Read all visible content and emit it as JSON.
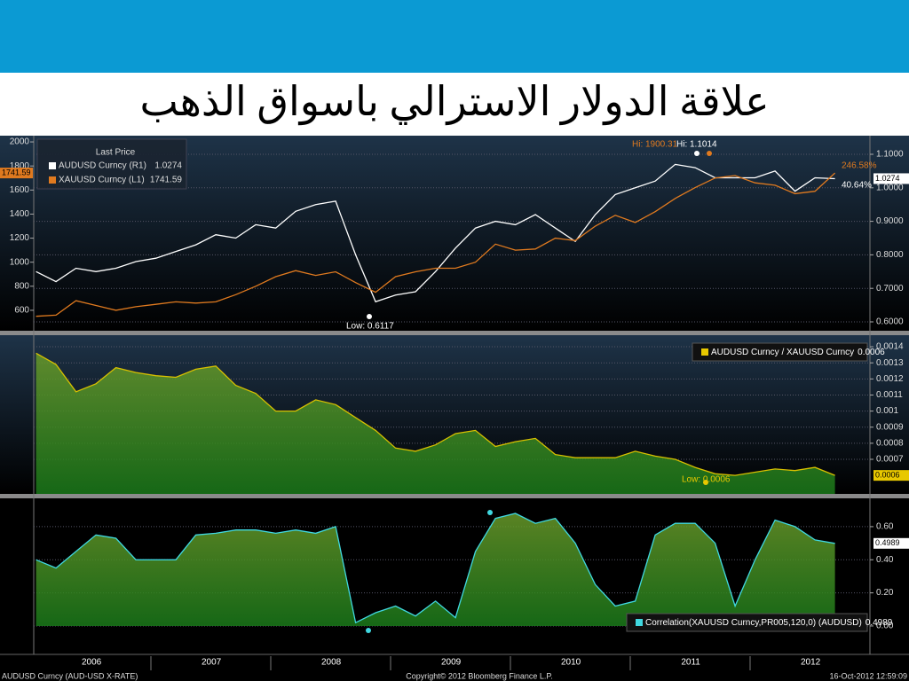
{
  "header": {
    "title": "علاقة الدولار الاسترالي باسواق الذهب"
  },
  "chart_data": [
    {
      "type": "line",
      "legend_title": "Last Price",
      "ylim": [
        430,
        2052
      ],
      "yticks": [
        600,
        800,
        1000,
        1200,
        1400,
        1600,
        1800,
        2000
      ],
      "y2lim": [
        0.5735,
        1.1556
      ],
      "y2ticks": [
        {
          "value": 0.6,
          "label": "0.6000"
        },
        {
          "value": 0.7,
          "label": "0.7000"
        },
        {
          "value": 0.8,
          "label": "0.8000"
        },
        {
          "value": 0.9,
          "label": "0.9000"
        },
        {
          "value": 1.0,
          "label": "1.0000"
        },
        {
          "value": 1.1,
          "label": "1.1000"
        }
      ],
      "grid": true,
      "series": [
        {
          "name": "AUDUSD Curncy  (R1)",
          "color": "#ffffff",
          "axis": "y2",
          "values": [
            0.75,
            0.72,
            0.76,
            0.75,
            0.76,
            0.78,
            0.79,
            0.81,
            0.83,
            0.86,
            0.85,
            0.89,
            0.88,
            0.93,
            0.95,
            0.96,
            0.8,
            0.66,
            0.68,
            0.69,
            0.75,
            0.82,
            0.88,
            0.9,
            0.89,
            0.92,
            0.88,
            0.84,
            0.92,
            0.98,
            1.0,
            1.02,
            1.07,
            1.06,
            1.03,
            1.03,
            1.03,
            1.05,
            0.99,
            1.03,
            1.0274
          ]
        },
        {
          "name": "XAUUSD Curncy  (L1)",
          "color": "#e07a1f",
          "values": [
            550,
            560,
            680,
            640,
            600,
            630,
            650,
            670,
            660,
            670,
            730,
            800,
            880,
            930,
            890,
            920,
            830,
            750,
            880,
            920,
            950,
            950,
            1000,
            1150,
            1100,
            1110,
            1200,
            1180,
            1300,
            1390,
            1330,
            1420,
            1530,
            1620,
            1700,
            1720,
            1660,
            1640,
            1570,
            1590,
            1741.59
          ]
        }
      ],
      "annotations": [
        "Hi: 1900.31",
        "Hi: 1.1014",
        "Low: 0.6117",
        "246.58%",
        "40.64%"
      ]
    },
    {
      "type": "area",
      "ylim": [
        0.000485,
        0.001472
      ],
      "yticks": [
        0.0007,
        0.0008,
        0.0009,
        0.001,
        0.0011,
        0.0012,
        0.0013,
        0.0014
      ],
      "grid": true,
      "series": [
        {
          "name": "AUDUSD Curncy / XAUUSD Curncy",
          "color": "#d8c000",
          "values": [
            0.00136,
            0.00129,
            0.00112,
            0.00117,
            0.00127,
            0.00124,
            0.00122,
            0.00121,
            0.00126,
            0.00128,
            0.00116,
            0.00111,
            0.001,
            0.001,
            0.00107,
            0.00104,
            0.00096,
            0.00088,
            0.00077,
            0.00075,
            0.00079,
            0.00086,
            0.00088,
            0.00078,
            0.00081,
            0.00083,
            0.00073,
            0.00071,
            0.00071,
            0.00071,
            0.00075,
            0.00072,
            0.0007,
            0.00065,
            0.00061,
            0.0006,
            0.00062,
            0.00064,
            0.00063,
            0.00065,
            0.0006
          ]
        }
      ],
      "annotations": [
        "Low: 0.0006"
      ]
    },
    {
      "type": "area",
      "ylim": [
        -0.086,
        0.771
      ],
      "yticks": [
        {
          "value": 0,
          "label": "0.00"
        },
        {
          "value": 0.2,
          "label": "0.20"
        },
        {
          "value": 0.4,
          "label": "0.40"
        },
        {
          "value": 0.6,
          "label": "0.60"
        }
      ],
      "grid": true,
      "series": [
        {
          "name": "Correlation(XAUUSD Curncy,PR005,120,0)  (AUDUSD)",
          "color": "#40d8e0",
          "values": [
            0.4,
            0.35,
            0.45,
            0.55,
            0.53,
            0.4,
            0.4,
            0.4,
            0.55,
            0.56,
            0.58,
            0.58,
            0.56,
            0.58,
            0.56,
            0.6,
            0.02,
            0.08,
            0.12,
            0.06,
            0.15,
            0.05,
            0.45,
            0.65,
            0.68,
            0.62,
            0.65,
            0.5,
            0.25,
            0.12,
            0.15,
            0.55,
            0.62,
            0.62,
            0.5,
            0.12,
            0.4,
            0.64,
            0.6,
            0.52,
            0.4989
          ]
        }
      ],
      "categories": [
        null,
        null,
        null,
        "2006",
        null,
        null,
        null,
        null,
        null,
        "2007",
        null,
        null,
        null,
        null,
        null,
        "2008",
        null,
        null,
        null,
        null,
        null,
        "2009",
        null,
        null,
        null,
        null,
        null,
        "2010",
        null,
        null,
        null,
        null,
        null,
        "2011",
        null,
        null,
        null,
        null,
        null,
        "2012",
        null
      ]
    }
  ],
  "footer": {
    "left": "AUDUSD Curncy (AUD-USD X-RATE)",
    "center": "Copyright© 2012 Bloomberg Finance L.P.",
    "right": "16-Oct-2012 12:59:09"
  }
}
